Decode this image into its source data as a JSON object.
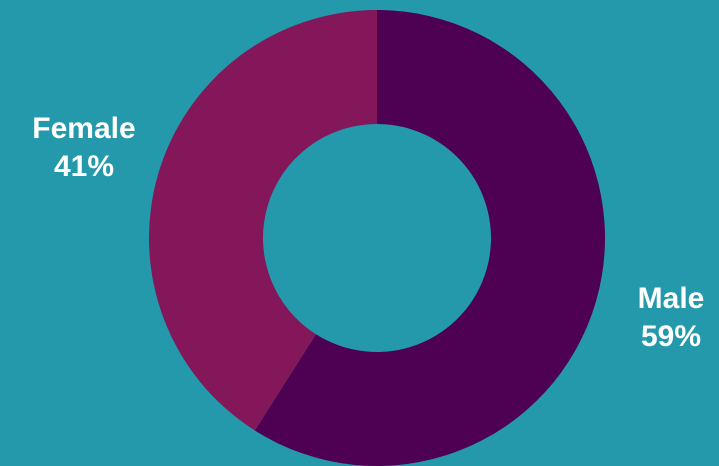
{
  "chart_data": {
    "type": "pie",
    "variant": "donut",
    "categories": [
      "Male",
      "Female"
    ],
    "values": [
      59,
      41
    ],
    "value_suffix": "%",
    "series": [
      {
        "values": [
          59,
          41
        ]
      }
    ],
    "slice_colors": [
      "#4E0052",
      "#83175A"
    ],
    "background_color": "#2499AB",
    "labels": [
      {
        "name": "Male",
        "value": "59%"
      },
      {
        "name": "Female",
        "value": "41%"
      }
    ],
    "legend": "none"
  }
}
